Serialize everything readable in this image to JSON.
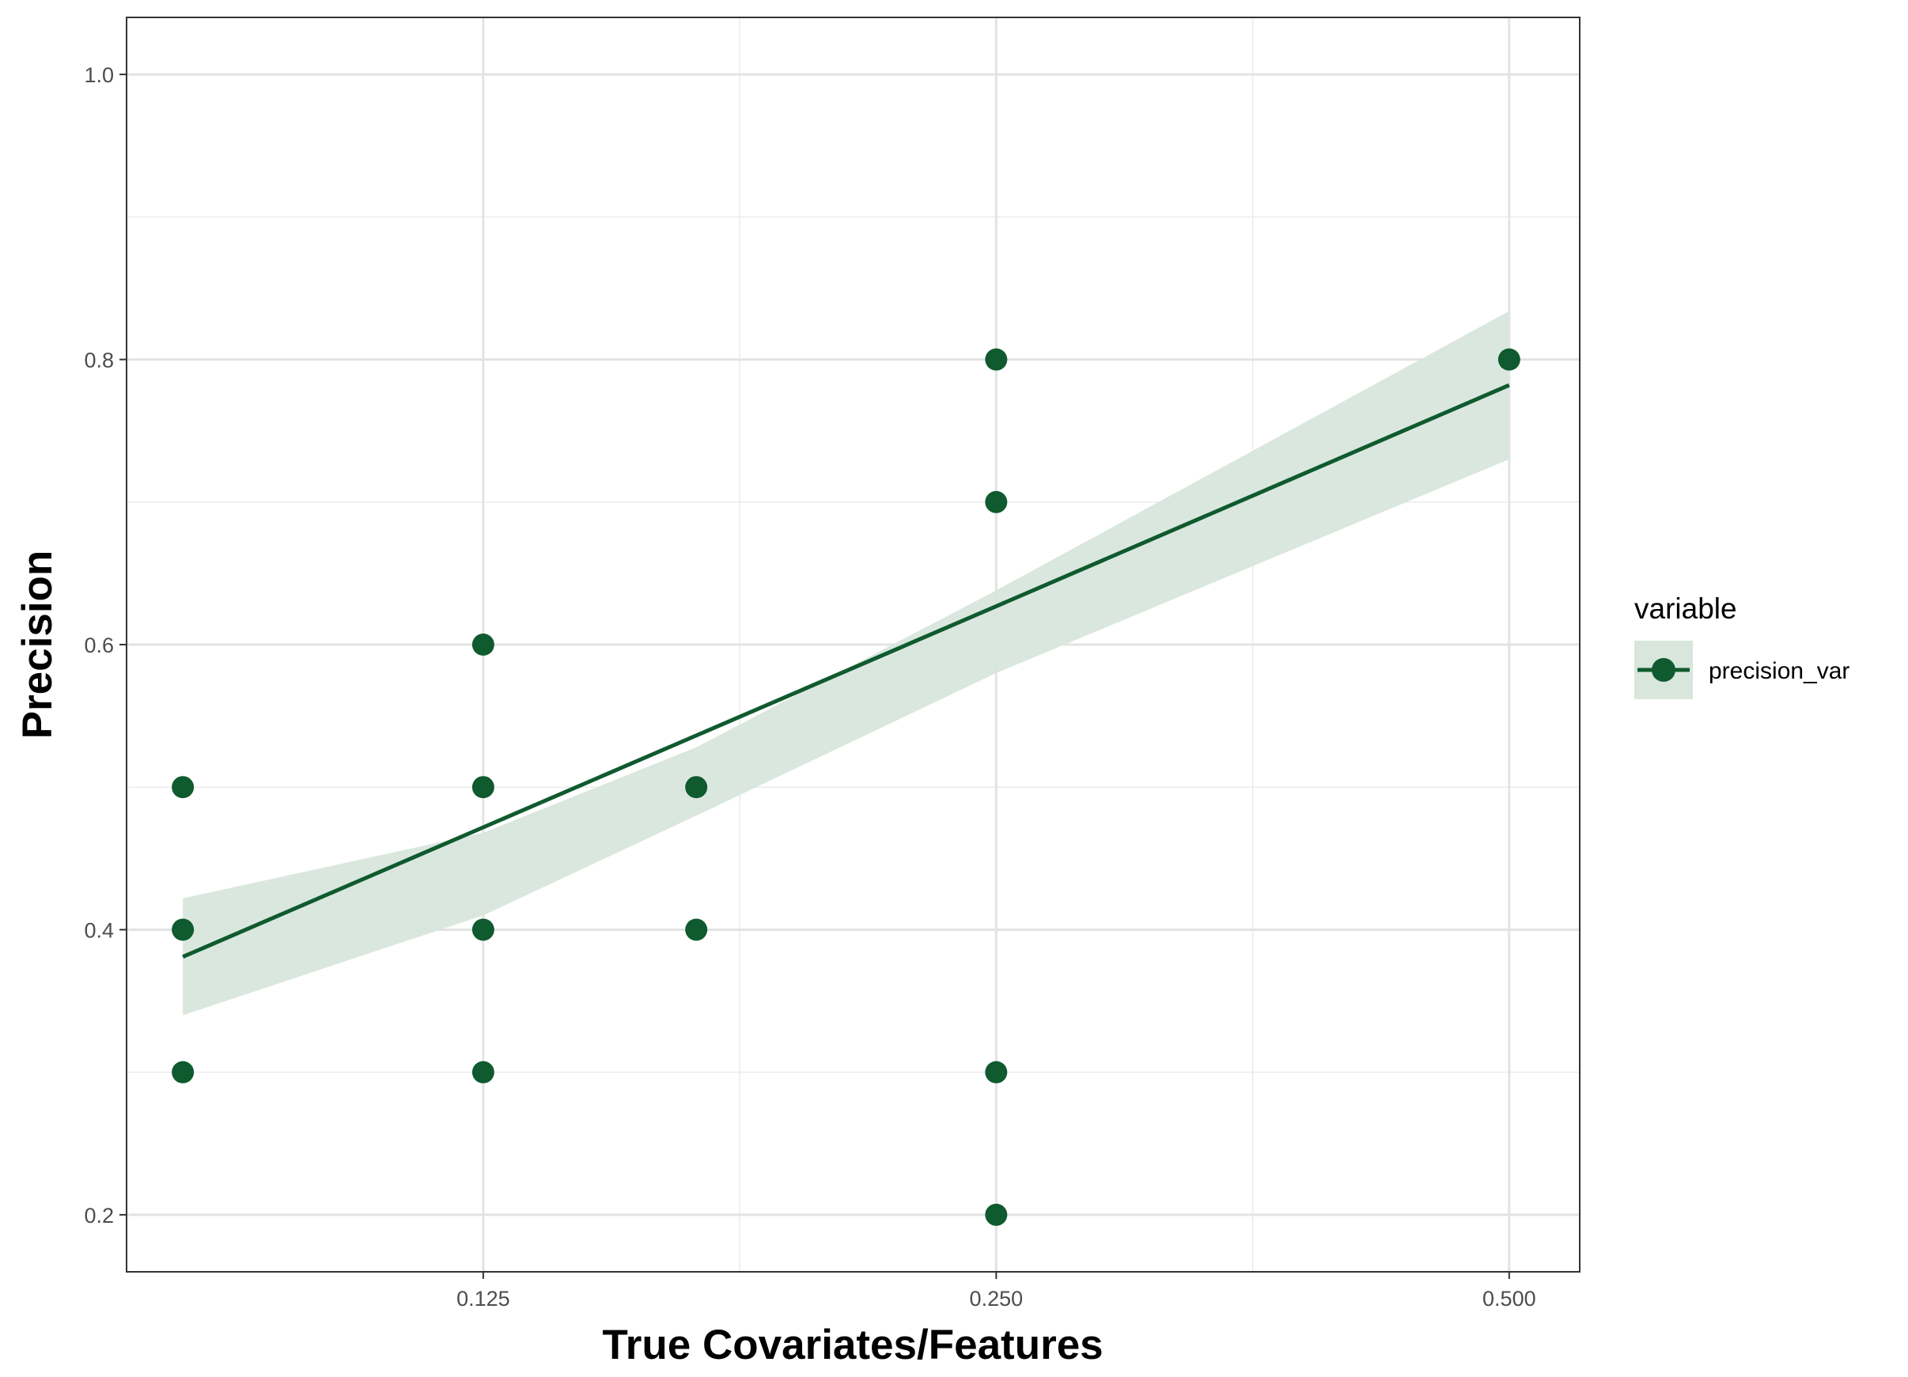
{
  "chart_data": {
    "type": "scatter",
    "title": "",
    "xlabel": "True Covariates/Features",
    "ylabel": "Precision",
    "x_scale": "log2",
    "xlim": [
      0.0772,
      0.55
    ],
    "ylim": [
      0.16,
      1.04
    ],
    "x_ticks": [
      0.125,
      0.25,
      0.5
    ],
    "x_tick_labels": [
      "0.125",
      "0.250",
      "0.500"
    ],
    "y_ticks": [
      0.2,
      0.4,
      0.6,
      0.8,
      1.0
    ],
    "y_tick_labels": [
      "0.2",
      "0.4",
      "0.6",
      "0.8",
      "1.0"
    ],
    "grid": true,
    "legend": {
      "title": "variable",
      "position": "right"
    },
    "series": [
      {
        "name": "precision_var",
        "color": "#0f5a2e",
        "points": [
          {
            "x": 0.0833,
            "y": 0.5
          },
          {
            "x": 0.0833,
            "y": 0.4
          },
          {
            "x": 0.0833,
            "y": 0.3
          },
          {
            "x": 0.125,
            "y": 0.6
          },
          {
            "x": 0.125,
            "y": 0.5
          },
          {
            "x": 0.125,
            "y": 0.4
          },
          {
            "x": 0.125,
            "y": 0.3
          },
          {
            "x": 0.1667,
            "y": 0.5
          },
          {
            "x": 0.1667,
            "y": 0.4
          },
          {
            "x": 0.25,
            "y": 0.8
          },
          {
            "x": 0.25,
            "y": 0.7
          },
          {
            "x": 0.25,
            "y": 0.3
          },
          {
            "x": 0.25,
            "y": 0.2
          },
          {
            "x": 0.5,
            "y": 0.8
          }
        ]
      }
    ],
    "trend_line": {
      "color": "#0f5a2e",
      "band_color": "#d8e6dc",
      "start": {
        "x": 0.0833,
        "y": 0.381,
        "lower": 0.34,
        "upper": 0.422
      },
      "end": {
        "x": 0.5,
        "y": 0.782,
        "lower": 0.73,
        "upper": 0.834
      },
      "points": [
        {
          "x": 0.0833,
          "y": 0.381,
          "lower": 0.34,
          "upper": 0.422
        },
        {
          "x": 0.125,
          "y": 0.437,
          "lower": 0.41,
          "upper": 0.468
        },
        {
          "x": 0.1667,
          "y": 0.5,
          "lower": 0.48,
          "upper": 0.528
        },
        {
          "x": 0.25,
          "y": 0.61,
          "lower": 0.58,
          "upper": 0.638
        },
        {
          "x": 0.5,
          "y": 0.782,
          "lower": 0.73,
          "upper": 0.834
        }
      ]
    }
  }
}
